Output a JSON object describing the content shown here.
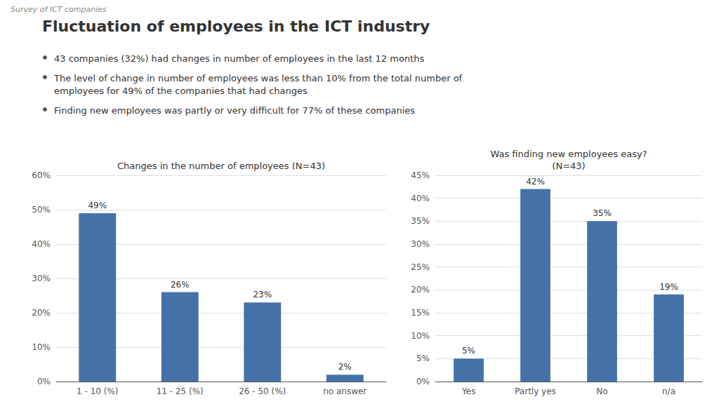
{
  "title": "Fluctuation of employees in the ICT industry",
  "subtitle": "Survey of ICT companies",
  "annotations": [
    "43 companies (32%) had changes in number of employees in the last 12 months",
    "The level of change in number of employees was less than 10% from the total number of\nemployees for 49% of the companies that had changes",
    "Finding new employees was partly or very difficult for 77% of these companies"
  ],
  "chart_data": [
    {
      "type": "bar",
      "title": "Changes in the number of employees (N=43)",
      "categories": [
        "1 - 10 (%)",
        "11 - 25 (%)",
        "26 - 50 (%)",
        "no answer"
      ],
      "values": [
        49,
        26,
        23,
        2
      ],
      "value_labels": [
        "49%",
        "26%",
        "23%",
        "2%"
      ],
      "data_labels": true,
      "color": "#4472a8",
      "ylim": [
        0,
        60
      ],
      "yticks": [
        {
          "value": 0,
          "label": "0%"
        },
        {
          "value": 10,
          "label": "10%"
        },
        {
          "value": 20,
          "label": "20%"
        },
        {
          "value": 30,
          "label": "30%"
        },
        {
          "value": 40,
          "label": "40%"
        },
        {
          "value": 50,
          "label": "50%"
        },
        {
          "value": 60,
          "label": "60%"
        }
      ],
      "grid": true
    },
    {
      "type": "bar",
      "title": "Was finding new employees easy?\n(N=43)",
      "categories": [
        "Yes",
        "Partly yes",
        "No",
        "n/a"
      ],
      "values": [
        5,
        42,
        35,
        19
      ],
      "value_labels": [
        "5%",
        "42%",
        "35%",
        "19%"
      ],
      "data_labels": true,
      "color": "#4472a8",
      "ylim": [
        0,
        45
      ],
      "yticks": [
        {
          "value": 0,
          "label": "0%"
        },
        {
          "value": 5,
          "label": "5%"
        },
        {
          "value": 10,
          "label": "10%"
        },
        {
          "value": 15,
          "label": "15%"
        },
        {
          "value": 20,
          "label": "20%"
        },
        {
          "value": 25,
          "label": "25%"
        },
        {
          "value": 30,
          "label": "30%"
        },
        {
          "value": 35,
          "label": "35%"
        },
        {
          "value": 40,
          "label": "40%"
        },
        {
          "value": 45,
          "label": "45%"
        }
      ],
      "grid": true
    }
  ]
}
